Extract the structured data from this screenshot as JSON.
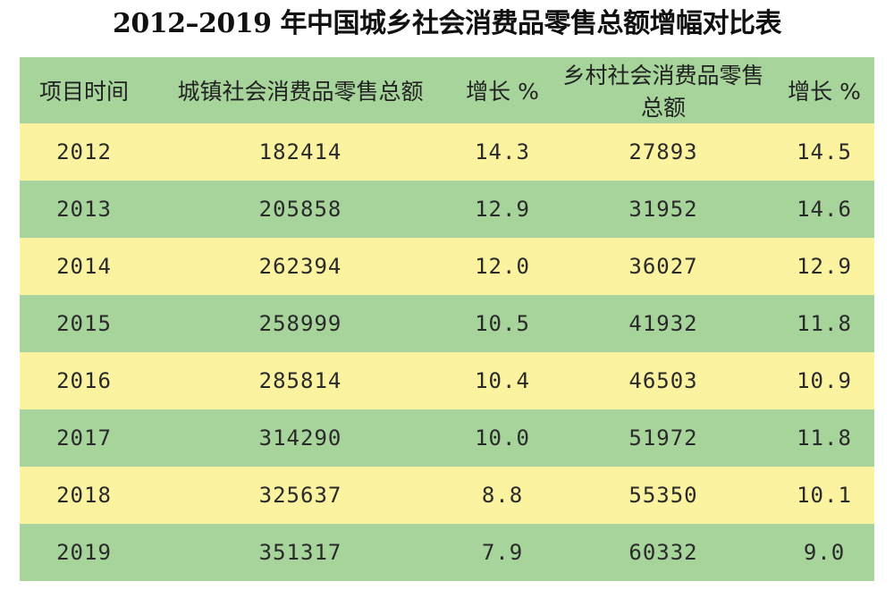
{
  "title": "2012–2019 年中国城乡社会消费品零售总额增幅对比表",
  "table": {
    "headers": [
      "项目时间",
      "城镇社会消费品零售总额",
      "增长 %",
      "乡村社会消费品零售总额",
      "增长 %"
    ],
    "rows": [
      [
        "2012",
        "182414",
        "14.3",
        "27893",
        "14.5"
      ],
      [
        "2013",
        "205858",
        "12.9",
        "31952",
        "14.6"
      ],
      [
        "2014",
        "262394",
        "12.0",
        "36027",
        "12.9"
      ],
      [
        "2015",
        "258999",
        "10.5",
        "41932",
        "11.8"
      ],
      [
        "2016",
        "285814",
        "10.4",
        "46503",
        "10.9"
      ],
      [
        "2017",
        "314290",
        "10.0",
        "51972",
        "11.8"
      ],
      [
        "2018",
        "325637",
        "8.8",
        "55350",
        "10.1"
      ],
      [
        "2019",
        "351317",
        "7.9",
        "60332",
        "9.0"
      ]
    ]
  },
  "colors": {
    "green_row": "#a6d49b",
    "yellow_row": "#fbf39f"
  }
}
